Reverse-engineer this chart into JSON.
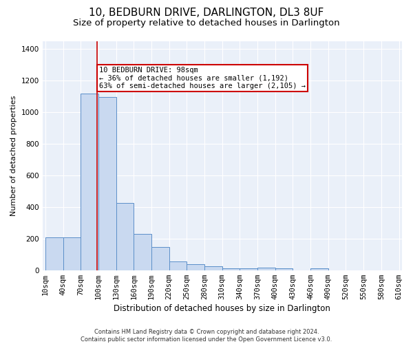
{
  "title": "10, BEDBURN DRIVE, DARLINGTON, DL3 8UF",
  "subtitle": "Size of property relative to detached houses in Darlington",
  "xlabel": "Distribution of detached houses by size in Darlington",
  "ylabel": "Number of detached properties",
  "footer_line1": "Contains HM Land Registry data © Crown copyright and database right 2024.",
  "footer_line2": "Contains public sector information licensed under the Open Government Licence v3.0.",
  "bar_edges": [
    10,
    40,
    70,
    100,
    130,
    160,
    190,
    220,
    250,
    280,
    310,
    340,
    370,
    400,
    430,
    460,
    490,
    520,
    550,
    580,
    610
  ],
  "bar_heights": [
    207,
    207,
    1120,
    1095,
    425,
    230,
    148,
    55,
    38,
    25,
    13,
    13,
    15,
    12,
    0,
    13,
    0,
    0,
    0,
    0
  ],
  "bar_color": "#c9d9f0",
  "bar_edge_color": "#5b8fc9",
  "vline_x": 98,
  "vline_color": "#cc0000",
  "annotation_text": "10 BEDBURN DRIVE: 98sqm\n← 36% of detached houses are smaller (1,192)\n63% of semi-detached houses are larger (2,105) →",
  "annotation_box_color": "#cc0000",
  "ylim": [
    0,
    1450
  ],
  "yticks": [
    0,
    200,
    400,
    600,
    800,
    1000,
    1200,
    1400
  ],
  "bg_color": "#eaf0f9",
  "grid_color": "#ffffff",
  "title_fontsize": 11,
  "subtitle_fontsize": 9.5,
  "xlabel_fontsize": 8.5,
  "ylabel_fontsize": 8,
  "tick_label_fontsize": 7.5,
  "annotation_fontsize": 7.5,
  "footer_fontsize": 6
}
